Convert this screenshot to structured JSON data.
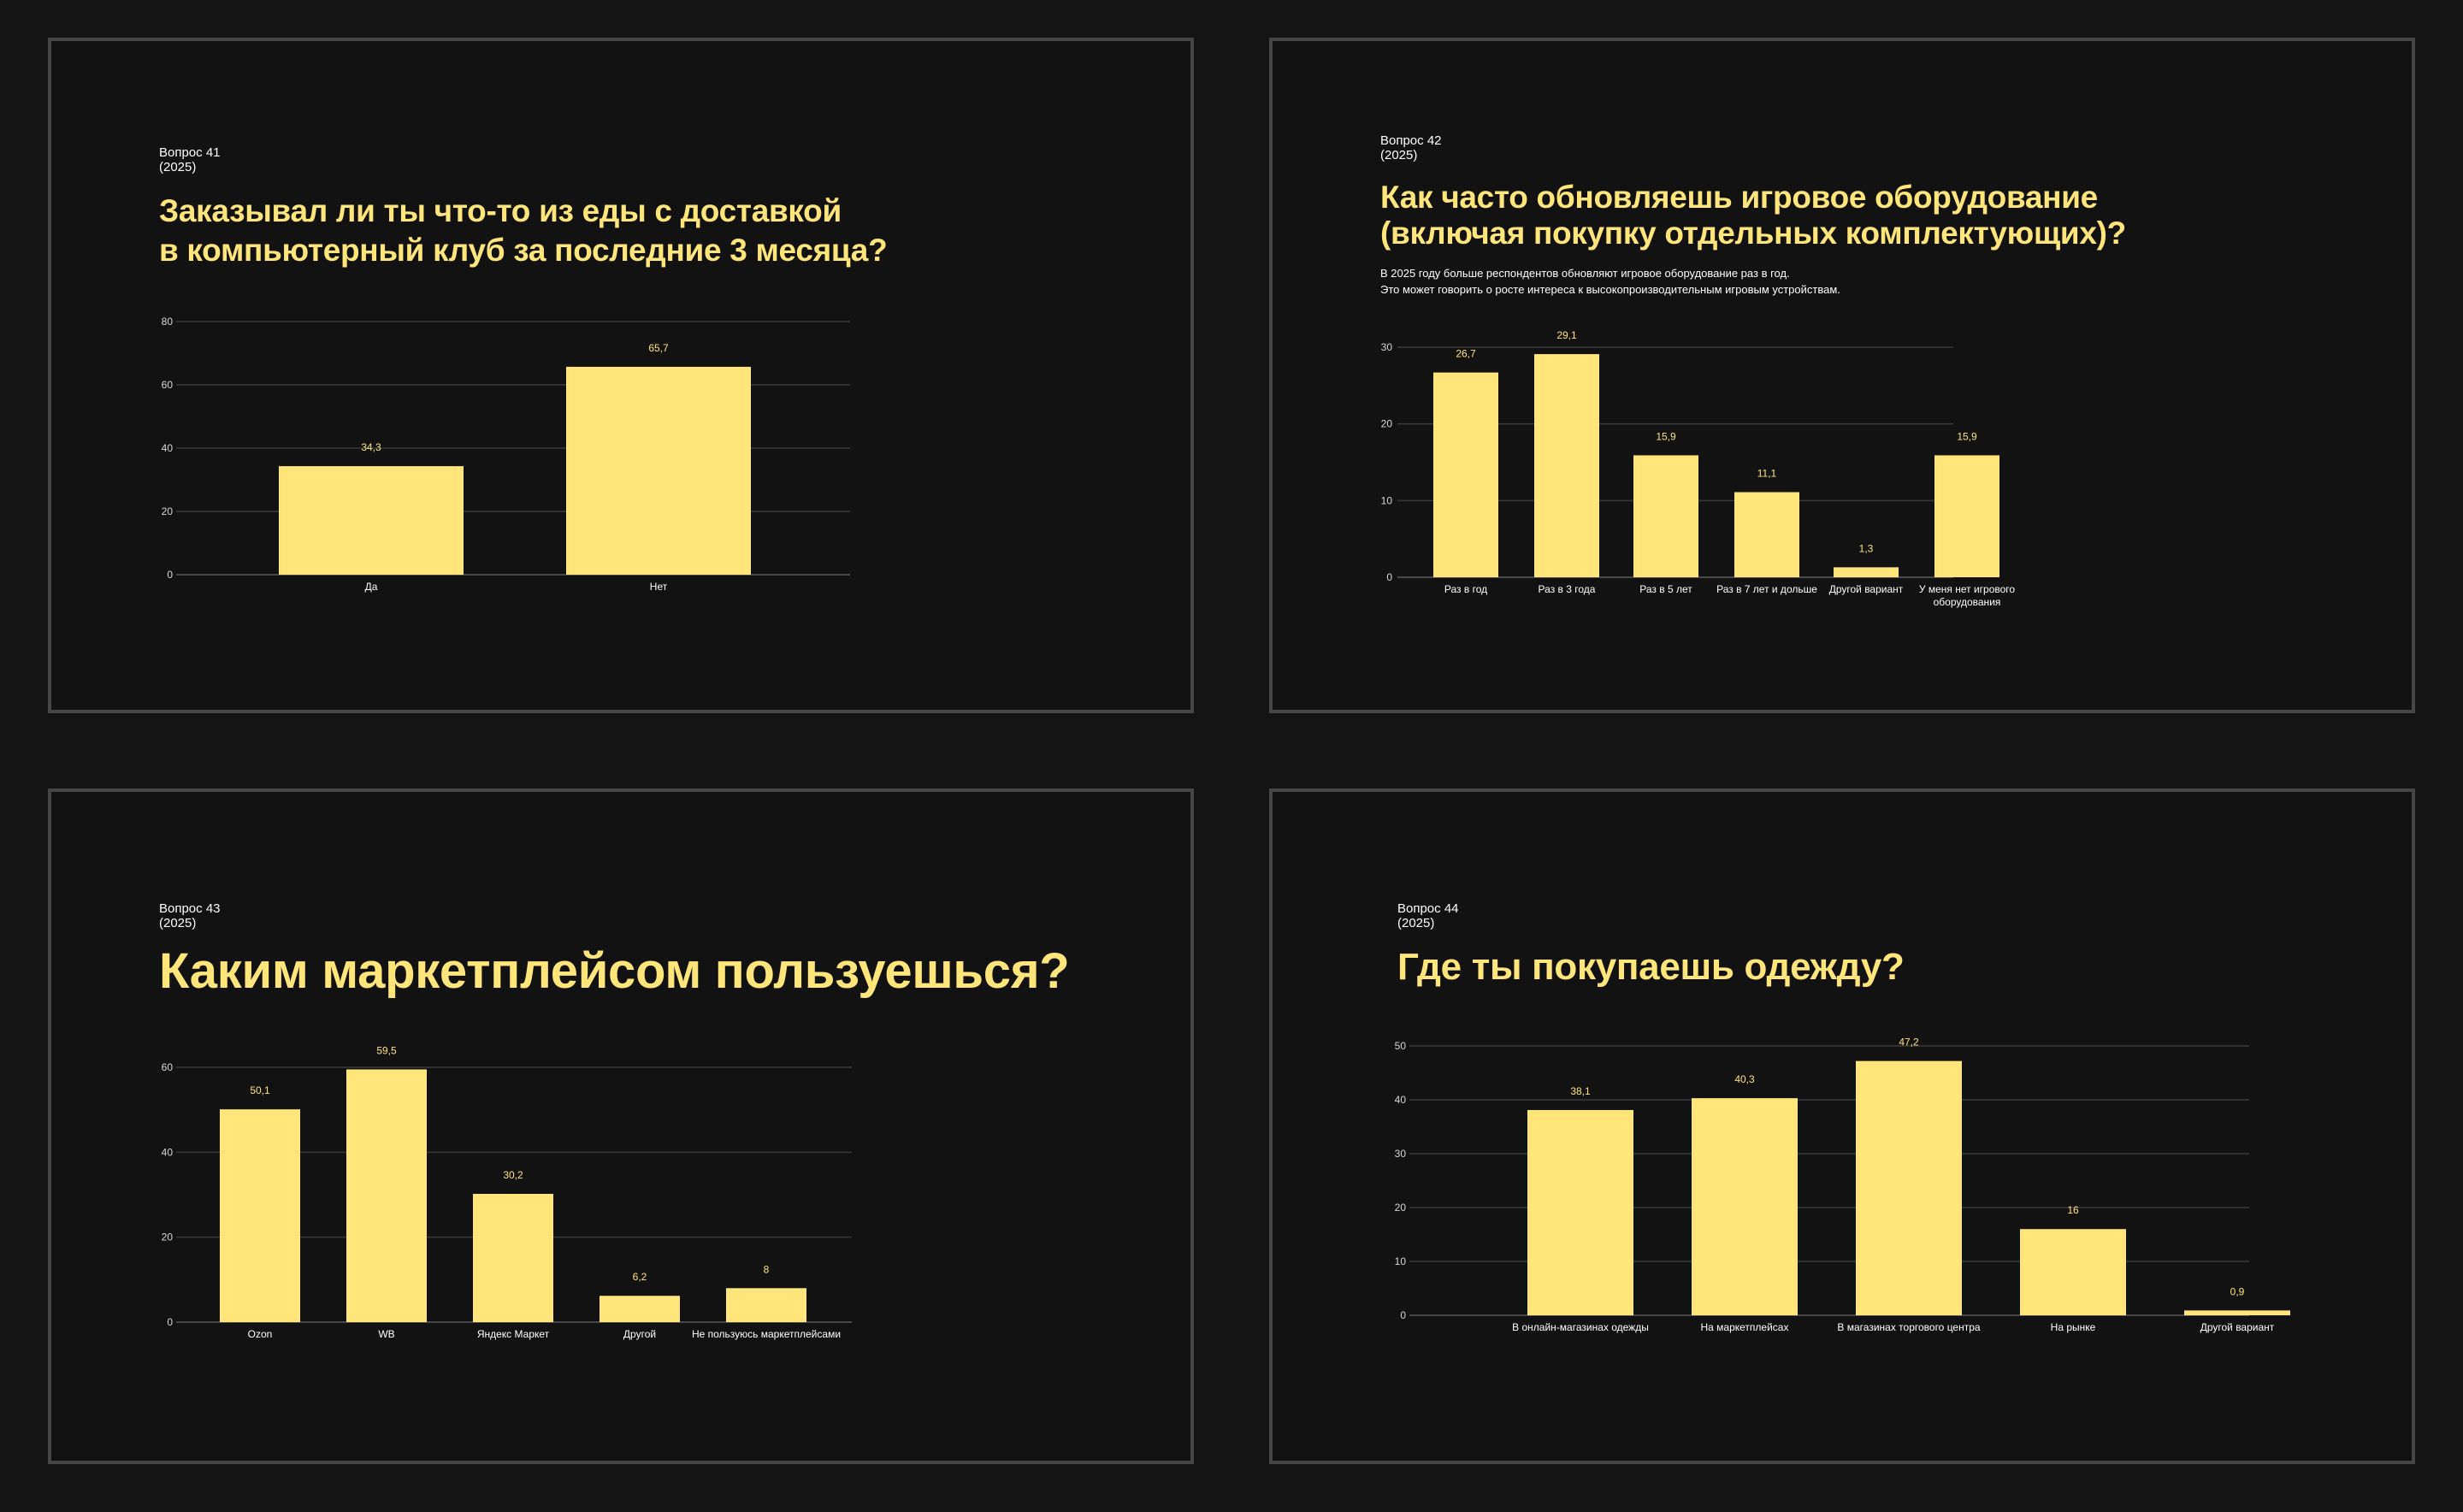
{
  "colors": {
    "background": "#141414",
    "slide_bg": "#121212",
    "border": "#464646",
    "accent": "#ffe57a",
    "text": "#ffffff",
    "grid": "#3a3a3a"
  },
  "slides": [
    {
      "question": "Вопрос 41",
      "year": "(2025)",
      "title_lines": [
        "Заказывал ли ты что-то из еды с доставкой",
        "в компьютерный клуб за последние 3 месяца?"
      ],
      "subtitle_lines": []
    },
    {
      "question": "Вопрос 42",
      "year": "(2025)",
      "title_lines": [
        "Как часто обновляешь игровое оборудование",
        "(включая покупку отдельных комплектующих)?"
      ],
      "subtitle_lines": [
        "В 2025 году больше респондентов обновляют игровое оборудование раз в год.",
        "Это может говорить о росте интереса к высокопроизводительным игровым устройствам."
      ]
    },
    {
      "question": "Вопрос 43",
      "year": "(2025)",
      "title_lines": [
        "Каким маркетплейсом пользуешься?"
      ],
      "subtitle_lines": []
    },
    {
      "question": "Вопрос 44",
      "year": "(2025)",
      "title_lines": [
        "Где ты покупаешь одежду?"
      ],
      "subtitle_lines": []
    }
  ],
  "chart_data": [
    {
      "type": "bar",
      "categories": [
        "Да",
        "Нет"
      ],
      "values": [
        34.3,
        65.7
      ],
      "value_labels": [
        "34,3",
        "65,7"
      ],
      "yticks": [
        0,
        20,
        40,
        60,
        80
      ],
      "ylim": [
        0,
        80
      ],
      "grid": true
    },
    {
      "type": "bar",
      "categories": [
        [
          "Раз в год"
        ],
        [
          "Раз в 3 года"
        ],
        [
          "Раз в 5 лет"
        ],
        [
          "Раз в 7 лет и дольше"
        ],
        [
          "Другой вариант"
        ],
        [
          "У меня нет игрового",
          "оборудования"
        ]
      ],
      "values": [
        26.7,
        29.1,
        15.9,
        11.1,
        1.3,
        15.9
      ],
      "value_labels": [
        "26,7",
        "29,1",
        "15,9",
        "11,1",
        "1,3",
        "15,9"
      ],
      "yticks": [
        0,
        10,
        20,
        30
      ],
      "ylim": [
        0,
        30
      ],
      "grid": true
    },
    {
      "type": "bar",
      "categories": [
        [
          "Ozon"
        ],
        [
          "WB"
        ],
        [
          "Яндекс Маркет"
        ],
        [
          "Другой"
        ],
        [
          "Не пользуюсь маркетплейсами"
        ]
      ],
      "values": [
        50.1,
        59.5,
        30.2,
        6.2,
        8
      ],
      "value_labels": [
        "50,1",
        "59,5",
        "30,2",
        "6,2",
        "8"
      ],
      "yticks": [
        0,
        20,
        40,
        60
      ],
      "ylim": [
        0,
        60
      ],
      "grid": true
    },
    {
      "type": "bar",
      "categories": [
        [
          "В онлайн-магазинах одежды"
        ],
        [
          "На маркетплейсах"
        ],
        [
          "В магазинах торгового центра"
        ],
        [
          "На рынке"
        ],
        [
          "Другой вариант"
        ]
      ],
      "values": [
        38.1,
        40.3,
        47.2,
        16,
        0.9
      ],
      "value_labels": [
        "38,1",
        "40,3",
        "47,2",
        "16",
        "0,9"
      ],
      "yticks": [
        0,
        10,
        20,
        30,
        40,
        50
      ],
      "ylim": [
        0,
        50
      ],
      "grid": true
    }
  ]
}
